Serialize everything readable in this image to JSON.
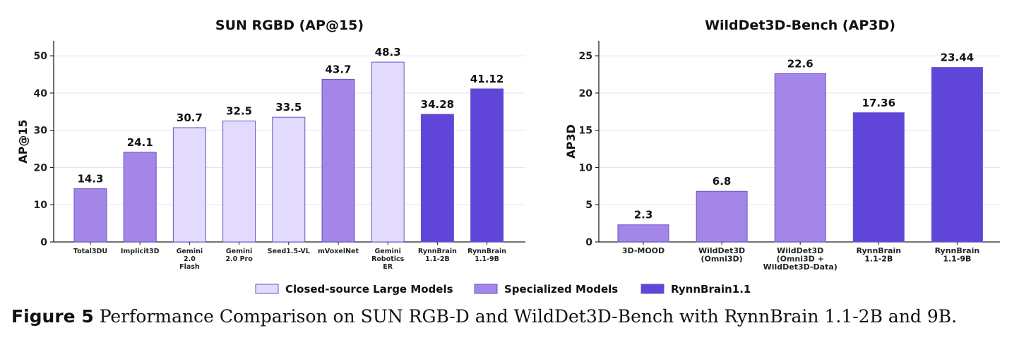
{
  "colors": {
    "closed": "#e2dbfd",
    "specialized": "#a386e7",
    "rynn": "#5f45d8",
    "edge": "#6a52c6",
    "grid": "#e6e4f4"
  },
  "legend": [
    {
      "label": "Closed-source Large Models",
      "group": "closed"
    },
    {
      "label": "Specialized Models",
      "group": "specialized"
    },
    {
      "label": "RynnBrain1.1",
      "group": "rynn"
    }
  ],
  "caption": {
    "label": "Figure 5",
    "text": "Performance Comparison on SUN RGB-D and WildDet3D-Bench with RynnBrain 1.1-2B and 9B."
  },
  "chart_data": [
    {
      "type": "bar",
      "title": "SUN RGBD (AP@15)",
      "xlabel": "",
      "ylabel": "AP@15",
      "ylim": [
        0,
        54
      ],
      "yticks": [
        0,
        10,
        20,
        30,
        40,
        50
      ],
      "grid": true,
      "categories": [
        "Total3DU",
        "Implicit3D",
        "Gemini\n2.0\nFlash",
        "Gemini\n2.0 Pro",
        "Seed1.5-VL",
        "mVoxelNet",
        "Gemini\nRobotics\nER",
        "RynnBrain\n1.1-2B",
        "RynnBrain\n1.1-9B"
      ],
      "values": [
        14.3,
        24.1,
        30.7,
        32.5,
        33.5,
        43.7,
        48.3,
        34.28,
        41.12
      ],
      "value_labels": [
        "14.3",
        "24.1",
        "30.7",
        "32.5",
        "33.5",
        "43.7",
        "48.3",
        "34.28",
        "41.12"
      ],
      "groups": [
        "specialized",
        "specialized",
        "closed",
        "closed",
        "closed",
        "specialized",
        "closed",
        "rynn",
        "rynn"
      ]
    },
    {
      "type": "bar",
      "title": "WildDet3D-Bench (AP3D)",
      "xlabel": "",
      "ylabel": "AP3D",
      "ylim": [
        0,
        27
      ],
      "yticks": [
        0,
        5,
        10,
        15,
        20,
        25
      ],
      "grid": true,
      "categories": [
        "3D-MOOD",
        "WildDet3D\n(Omni3D)",
        "WildDet3D\n(Omni3D +\nWildDet3D-Data)",
        "RynnBrain\n1.1-2B",
        "RynnBrain\n1.1-9B"
      ],
      "values": [
        2.3,
        6.8,
        22.6,
        17.36,
        23.44
      ],
      "value_labels": [
        "2.3",
        "6.8",
        "22.6",
        "17.36",
        "23.44"
      ],
      "groups": [
        "specialized",
        "specialized",
        "specialized",
        "rynn",
        "rynn"
      ]
    }
  ]
}
